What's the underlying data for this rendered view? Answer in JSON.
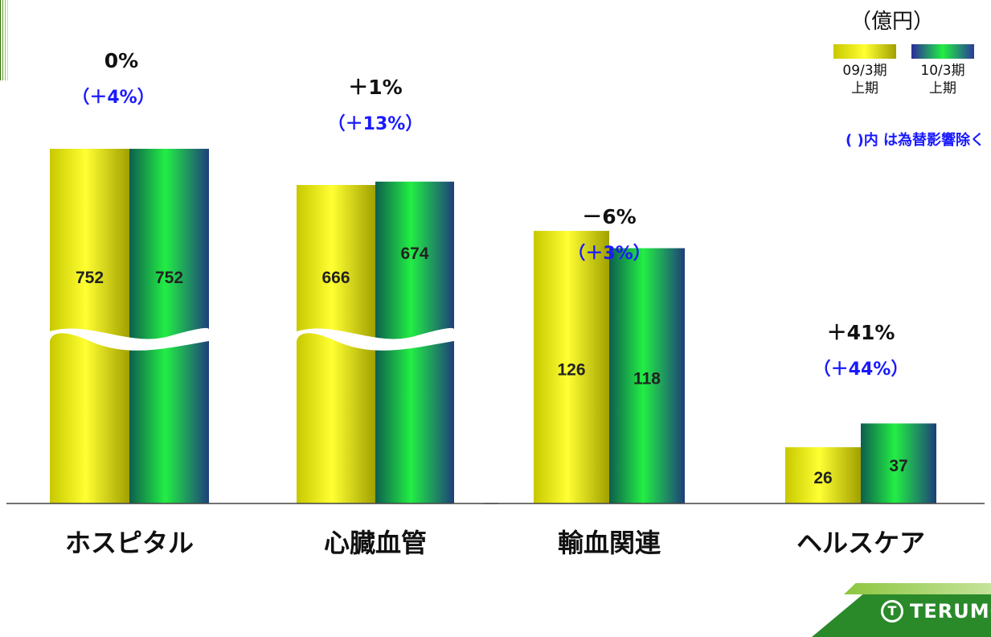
{
  "unit_label": "（億円）",
  "note": "( )内 は為替影響除く",
  "legend": [
    {
      "label": "09/3期\n上期",
      "colors": [
        "#c8c800",
        "#ffff33"
      ]
    },
    {
      "label": "10/3期\n上期",
      "colors": [
        "#2a2a9a",
        "#22ee44"
      ]
    }
  ],
  "logo": {
    "mark": "T",
    "text": "TERUMO"
  },
  "chart_data": {
    "type": "bar",
    "categories": [
      "ホスピタル",
      "心臓血管",
      "輸血関連",
      "ヘルスケア"
    ],
    "series": [
      {
        "name": "09/3期 上期",
        "values": [
          752,
          666,
          126,
          26
        ]
      },
      {
        "name": "10/3期 上期",
        "values": [
          752,
          674,
          118,
          37
        ]
      }
    ],
    "growth": [
      "0%",
      "＋1%",
      "－6%",
      "＋41%"
    ],
    "growth_ex_fx": [
      "（＋4%）",
      "（＋13%）",
      "（＋3%）",
      "（＋44%）"
    ],
    "axis_break": [
      true,
      true,
      false,
      false
    ]
  }
}
